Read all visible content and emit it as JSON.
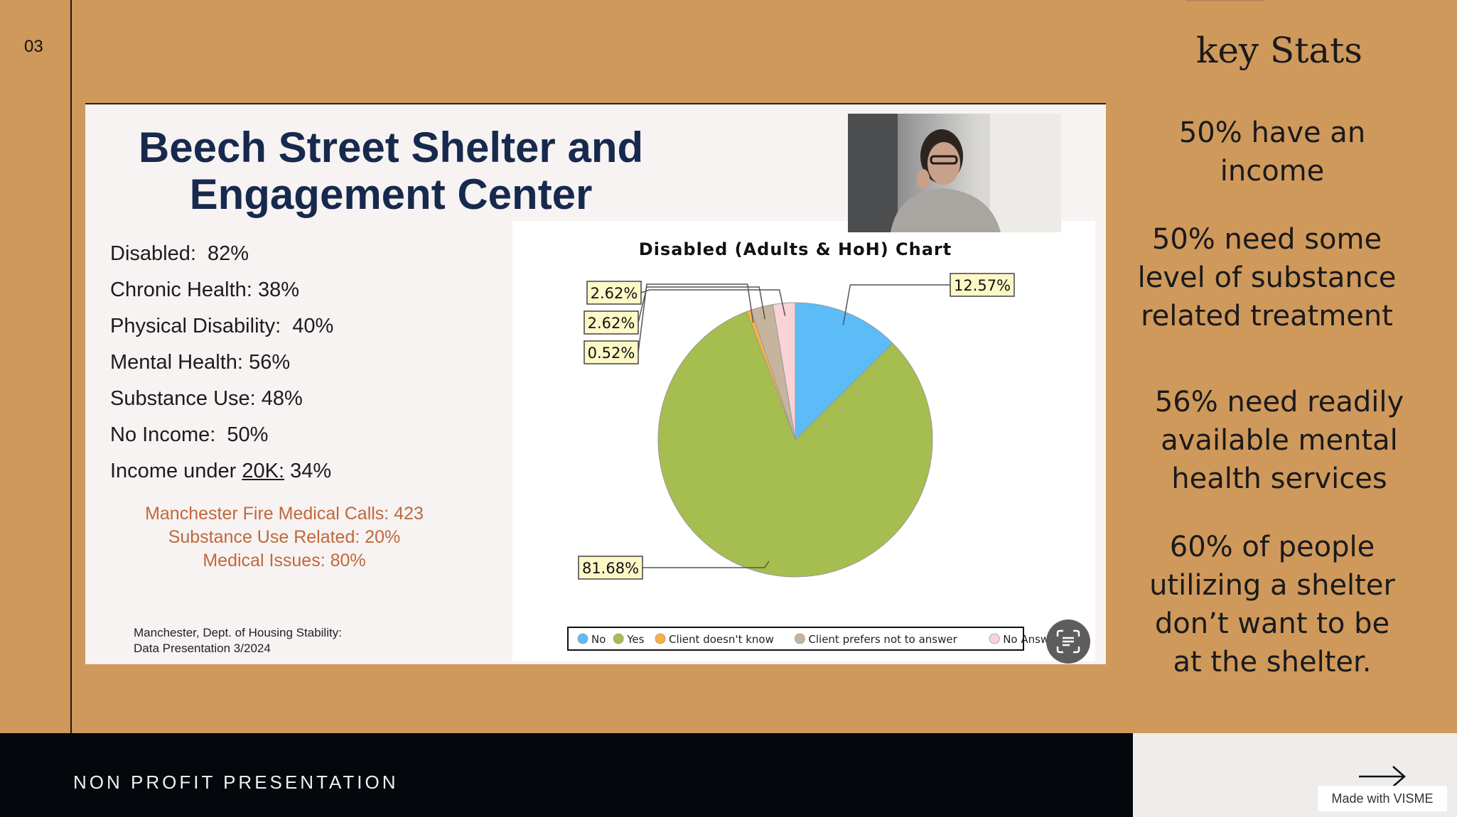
{
  "slide_number": "03",
  "slide": {
    "title_line1": "Beech Street Shelter and",
    "title_line2": "Engagement Center",
    "stats": [
      {
        "label": "Disabled:",
        "value": "82%"
      },
      {
        "label": "Chronic Health:",
        "value": "38%"
      },
      {
        "label": "Physical Disability:",
        "value": "40%"
      },
      {
        "label": "Mental Health:",
        "value": "56%"
      },
      {
        "label": "Substance Use:",
        "value": "48%"
      },
      {
        "label": "No Income:",
        "value": "50%"
      }
    ],
    "income_line": {
      "prefix": "Income under ",
      "underlined": "20K:",
      "value": " 34%"
    },
    "fire_calls": [
      "Manchester Fire Medical Calls: 423",
      "Substance Use Related:  20%",
      "Medical Issues:  80%"
    ],
    "source": [
      "Manchester, Dept. of Housing Stability:",
      "Data Presentation 3/2024"
    ]
  },
  "chart_data": {
    "type": "pie",
    "title": "Disabled (Adults & HoH) Chart",
    "slices": [
      {
        "name": "No",
        "value": 12.57,
        "label": "12.57%",
        "color": "#5bbcf7"
      },
      {
        "name": "Yes",
        "value": 81.68,
        "label": "81.68%",
        "color": "#a6bd4f"
      },
      {
        "name": "Client doesn't know",
        "value": 0.52,
        "label": "0.52%",
        "color": "#f7b23f"
      },
      {
        "name": "Client prefers not to answer",
        "value": 2.62,
        "label": "2.62%",
        "color": "#c6b49e"
      },
      {
        "name": "No Answer",
        "value": 2.62,
        "label": "2.62%",
        "color": "#f9d3d6"
      }
    ],
    "legend_position": "bottom"
  },
  "right_panel": {
    "title": "key Stats",
    "stats": [
      "50% have an income",
      "50% need some level of substance related treatment",
      "56% need readily available mental health services",
      "60% of people utilizing a shelter don’t want to be at the shelter."
    ]
  },
  "footer": {
    "label": "NON PROFIT PRESENTATION",
    "badge": "Made with VISME"
  },
  "icons": [
    "scan-text-icon",
    "arrow-right-icon",
    "presenter-video-thumbnail"
  ]
}
